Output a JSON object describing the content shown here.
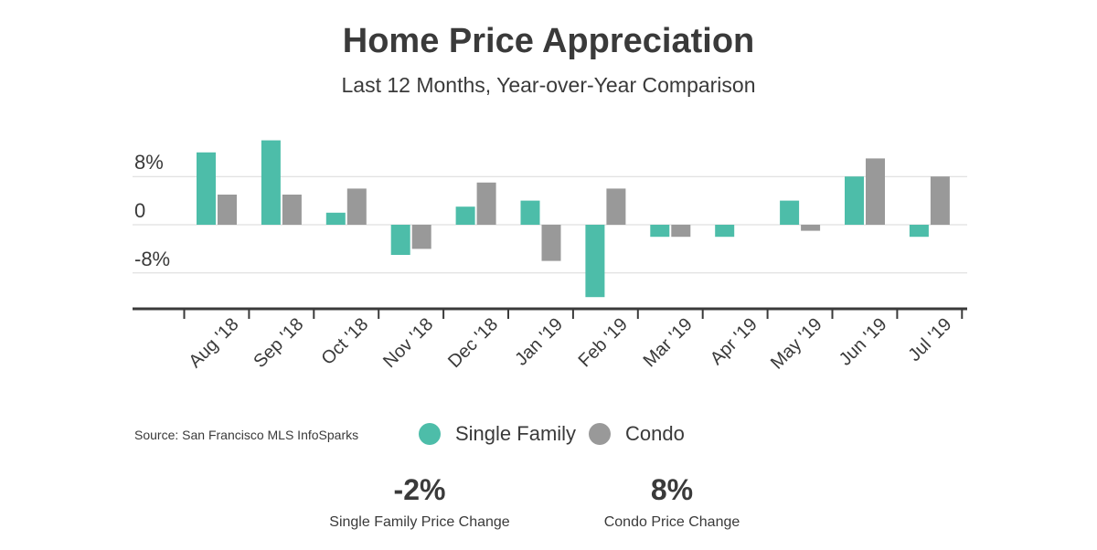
{
  "title": "Home Price Appreciation",
  "subtitle": "Last 12 Months, Year-over-Year Comparison",
  "source": "Source:  San Francisco MLS InfoSparks",
  "legend": [
    {
      "label": "Single Family",
      "color": "#4dbda9"
    },
    {
      "label": "Condo",
      "color": "#999999"
    }
  ],
  "stats": [
    {
      "value": "-2%",
      "label": "Single Family Price Change"
    },
    {
      "value": "8%",
      "label": "Condo Price Change"
    }
  ],
  "chart_data": {
    "type": "bar",
    "title": "Home Price Appreciation",
    "subtitle": "Last 12 Months, Year-over-Year Comparison",
    "categories": [
      "Aug '18",
      "Sep '18",
      "Oct '18",
      "Nov '18",
      "Dec '18",
      "Jan '19",
      "Feb '19",
      "Mar '19",
      "Apr '19",
      "May '19",
      "Jun '19",
      "Jul '19"
    ],
    "series": [
      {
        "name": "Single Family",
        "color": "#4dbda9",
        "values": [
          12,
          14,
          2,
          -5,
          3,
          4,
          -12,
          -2,
          -2,
          4,
          8,
          -2
        ]
      },
      {
        "name": "Condo",
        "color": "#999999",
        "values": [
          5,
          5,
          6,
          -4,
          7,
          -6,
          6,
          -2,
          0,
          -1,
          11,
          8
        ]
      }
    ],
    "yticks": [
      8,
      0,
      -8
    ],
    "ytick_labels": [
      "8%",
      "0",
      "-8%"
    ],
    "ylim": [
      -14,
      14
    ],
    "grid": true,
    "legend_position": "bottom"
  }
}
